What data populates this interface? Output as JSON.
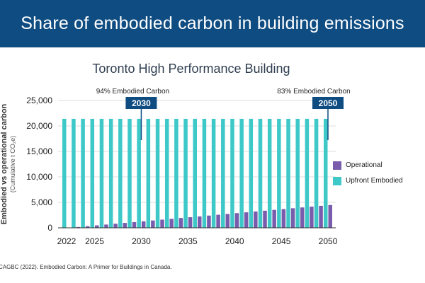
{
  "banner": {
    "title": "Share of embodied carbon in building emissions"
  },
  "source": "CAGBC (2022). Embodied Carbon: A Primer for Buildings in Canada.",
  "colors": {
    "banner": "#0f4c81",
    "upfront": "#3ec8c8",
    "operational": "#7a5cac",
    "marker": "#0f4c81"
  },
  "chart_data": {
    "type": "bar",
    "stacked": false,
    "title": "Toronto High Performance Building",
    "ylabel": "Embodied vs operational carbon",
    "ylabel_sub": "(Cumulative t CO₂e)",
    "xlabel": "",
    "ylim": [
      0,
      25000
    ],
    "yticks": [
      0,
      5000,
      10000,
      15000,
      20000,
      25000
    ],
    "ytick_labels": [
      "0",
      "5,000",
      "10,000",
      "15,000",
      "20,000",
      "25,000"
    ],
    "xtick_labels": [
      "2022",
      "2025",
      "2030",
      "2035",
      "2040",
      "2045",
      "2050"
    ],
    "grid": true,
    "categories": [
      2022,
      2023,
      2024,
      2025,
      2026,
      2027,
      2028,
      2029,
      2030,
      2031,
      2032,
      2033,
      2034,
      2035,
      2036,
      2037,
      2038,
      2039,
      2040,
      2041,
      2042,
      2043,
      2044,
      2045,
      2046,
      2047,
      2048,
      2049,
      2050
    ],
    "series": [
      {
        "name": "Upfront Embodied",
        "color": "#3ec8c8",
        "values": [
          21400,
          21400,
          21400,
          21400,
          21400,
          21400,
          21400,
          21400,
          21400,
          21400,
          21400,
          21400,
          21400,
          21400,
          21400,
          21400,
          21400,
          21400,
          21400,
          21400,
          21400,
          21400,
          21400,
          21400,
          21400,
          21400,
          21400,
          21400,
          21400
        ]
      },
      {
        "name": "Operational",
        "color": "#7a5cac",
        "values": [
          0,
          160,
          320,
          480,
          640,
          800,
          960,
          1120,
          1280,
          1440,
          1600,
          1760,
          1920,
          2080,
          2240,
          2400,
          2560,
          2720,
          2880,
          3040,
          3200,
          3360,
          3520,
          3680,
          3840,
          4000,
          4160,
          4320,
          4480
        ]
      }
    ],
    "annotations": [
      {
        "year": 2030,
        "label": "2030",
        "text": "94% Embodied Carbon"
      },
      {
        "year": 2050,
        "label": "2050",
        "text": "83% Embodied Carbon"
      }
    ],
    "legend": {
      "position": "right",
      "items": [
        "Operational",
        "Upfront Embodied"
      ]
    }
  }
}
